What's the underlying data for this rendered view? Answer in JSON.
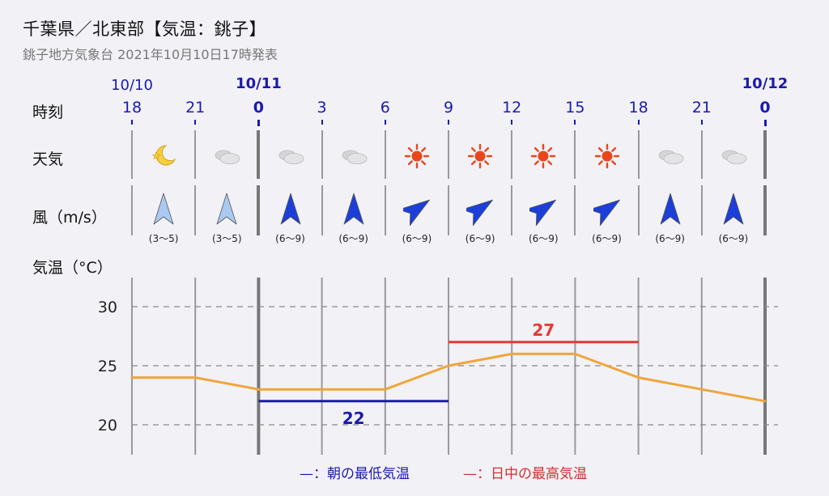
{
  "header": {
    "title": "千葉県／北東部【気温：銚子】",
    "subtitle": "銚子地方気象台 2021年10月10日17時発表"
  },
  "labels": {
    "time": "時刻",
    "weather": "天気",
    "wind": "風（m/s）",
    "temp": "気温（°C）"
  },
  "dates": [
    {
      "text": "10/10",
      "bold": false,
      "col": 0
    },
    {
      "text": "10/11",
      "bold": true,
      "col": 2
    },
    {
      "text": "10/12",
      "bold": true,
      "col": 10
    }
  ],
  "times": [
    {
      "text": "18",
      "bold": false
    },
    {
      "text": "21",
      "bold": false
    },
    {
      "text": "0",
      "bold": true
    },
    {
      "text": "3",
      "bold": false
    },
    {
      "text": "6",
      "bold": false
    },
    {
      "text": "9",
      "bold": false
    },
    {
      "text": "12",
      "bold": false
    },
    {
      "text": "15",
      "bold": false
    },
    {
      "text": "18",
      "bold": false
    },
    {
      "text": "21",
      "bold": false
    },
    {
      "text": "0",
      "bold": true
    }
  ],
  "weather": [
    {
      "icon": "moon-icon"
    },
    {
      "icon": "cloud-icon"
    },
    {
      "icon": "cloud-icon"
    },
    {
      "icon": "cloud-icon"
    },
    {
      "icon": "sun-icon"
    },
    {
      "icon": "sun-icon"
    },
    {
      "icon": "sun-icon"
    },
    {
      "icon": "sun-icon"
    },
    {
      "icon": "cloud-icon"
    },
    {
      "icon": "cloud-icon"
    }
  ],
  "wind": [
    {
      "speed": "(3～5)",
      "direction": "north",
      "color": "#a9c9f2"
    },
    {
      "speed": "(3～5)",
      "direction": "north",
      "color": "#a9c9f2"
    },
    {
      "speed": "(6～9)",
      "direction": "north",
      "color": "#1b3fd8"
    },
    {
      "speed": "(6～9)",
      "direction": "north",
      "color": "#1b3fd8"
    },
    {
      "speed": "(6～9)",
      "direction": "northeast",
      "color": "#1b3fd8"
    },
    {
      "speed": "(6～9)",
      "direction": "northeast",
      "color": "#1b3fd8"
    },
    {
      "speed": "(6～9)",
      "direction": "northeast",
      "color": "#1b3fd8"
    },
    {
      "speed": "(6～9)",
      "direction": "northeast",
      "color": "#1b3fd8"
    },
    {
      "speed": "(6～9)",
      "direction": "north",
      "color": "#1b3fd8"
    },
    {
      "speed": "(6～9)",
      "direction": "north",
      "color": "#1b3fd8"
    }
  ],
  "chart_data": {
    "type": "line",
    "x": [
      "18",
      "21",
      "0",
      "3",
      "6",
      "9",
      "12",
      "15",
      "18",
      "21",
      "0"
    ],
    "series": [
      {
        "values": [
          24,
          24,
          23,
          23,
          23,
          25,
          26,
          26,
          24,
          23,
          22
        ],
        "color": "#f0a53a"
      }
    ],
    "yticks": [
      20,
      25,
      30
    ],
    "ylim": [
      17.5,
      33
    ],
    "min_temp": {
      "value": 22,
      "label": "22",
      "from_index": 2,
      "to_index": 5,
      "color": "#1a1ab0"
    },
    "max_temp": {
      "value": 27,
      "label": "27",
      "from_index": 5,
      "to_index": 8,
      "color": "#e53935"
    },
    "grid": true
  },
  "legend": {
    "min": "—：朝の最低気温",
    "max": "—：日中の最高気温"
  }
}
